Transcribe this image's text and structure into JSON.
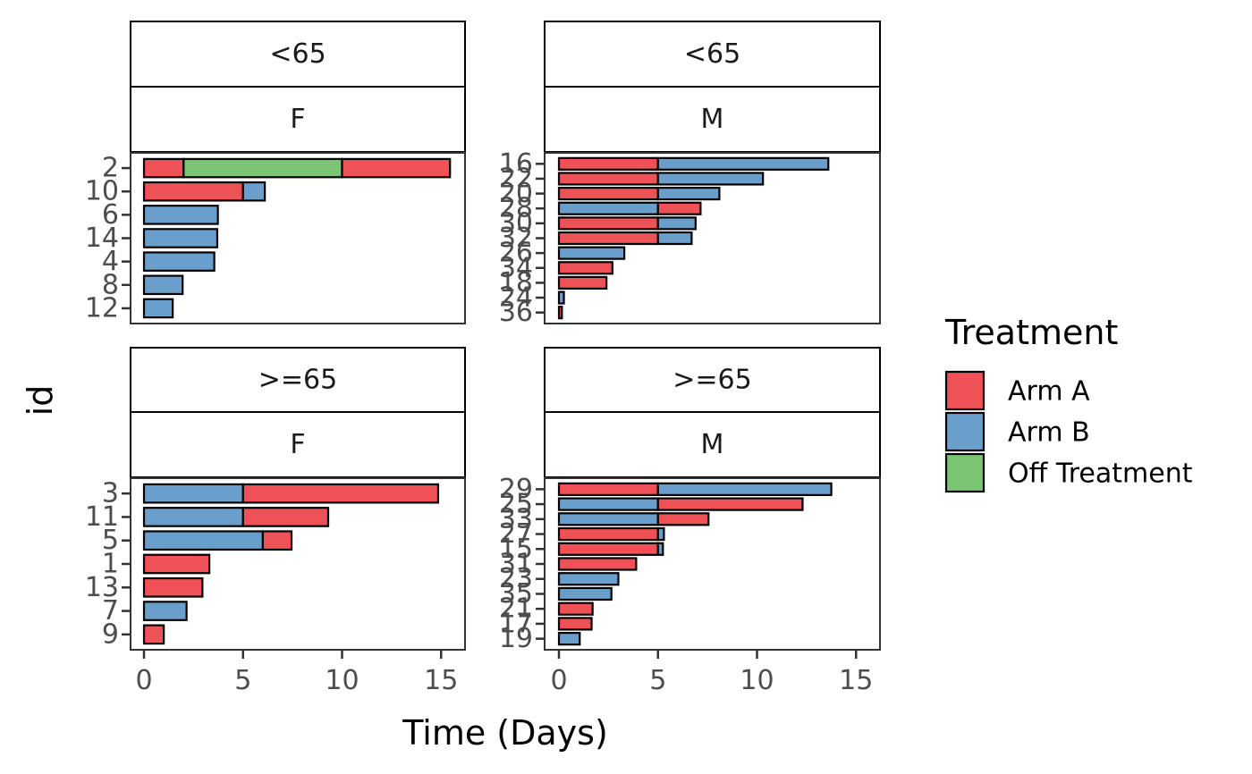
{
  "chart_data": {
    "type": "bar",
    "orientation": "horizontal",
    "stacked": true,
    "xlabel": "Time (Days)",
    "ylabel": "id",
    "xlim": [
      0,
      15.5
    ],
    "xticks": [
      0,
      5,
      10,
      15
    ],
    "grid": false,
    "legend": {
      "title": "Treatment",
      "position": "right",
      "entries": [
        {
          "name": "Arm A",
          "color": "#EE5256"
        },
        {
          "name": "Arm B",
          "color": "#6A9ECB"
        },
        {
          "name": "Off Treatment",
          "color": "#7AC474"
        }
      ]
    },
    "panels": [
      {
        "age": "<65",
        "sex": "F",
        "bars": [
          {
            "id": "2",
            "segments": [
              {
                "arm": "Arm A",
                "start": 0,
                "end": 2.0
              },
              {
                "arm": "Off Treatment",
                "start": 2.0,
                "end": 10.0
              },
              {
                "arm": "Arm A",
                "start": 10.0,
                "end": 15.45
              }
            ]
          },
          {
            "id": "10",
            "segments": [
              {
                "arm": "Arm A",
                "start": 0,
                "end": 5.0
              },
              {
                "arm": "Arm B",
                "start": 5.0,
                "end": 6.1
              }
            ]
          },
          {
            "id": "6",
            "segments": [
              {
                "arm": "Arm B",
                "start": 0,
                "end": 3.73
              }
            ]
          },
          {
            "id": "14",
            "segments": [
              {
                "arm": "Arm B",
                "start": 0,
                "end": 3.7
              }
            ]
          },
          {
            "id": "4",
            "segments": [
              {
                "arm": "Arm B",
                "start": 0,
                "end": 3.55
              }
            ]
          },
          {
            "id": "8",
            "segments": [
              {
                "arm": "Arm B",
                "start": 0,
                "end": 1.95
              }
            ]
          },
          {
            "id": "12",
            "segments": [
              {
                "arm": "Arm B",
                "start": 0,
                "end": 1.45
              }
            ]
          }
        ]
      },
      {
        "age": "<65",
        "sex": "M",
        "bars": [
          {
            "id": "16",
            "segments": [
              {
                "arm": "Arm A",
                "start": 0,
                "end": 5.0
              },
              {
                "arm": "Arm B",
                "start": 5.0,
                "end": 13.6
              }
            ]
          },
          {
            "id": "22",
            "segments": [
              {
                "arm": "Arm A",
                "start": 0,
                "end": 5.0
              },
              {
                "arm": "Arm B",
                "start": 5.0,
                "end": 10.3
              }
            ]
          },
          {
            "id": "20",
            "segments": [
              {
                "arm": "Arm A",
                "start": 0,
                "end": 5.0
              },
              {
                "arm": "Arm B",
                "start": 5.0,
                "end": 8.1
              }
            ]
          },
          {
            "id": "28",
            "segments": [
              {
                "arm": "Arm B",
                "start": 0,
                "end": 5.0
              },
              {
                "arm": "Arm A",
                "start": 5.0,
                "end": 7.15
              }
            ]
          },
          {
            "id": "30",
            "segments": [
              {
                "arm": "Arm A",
                "start": 0,
                "end": 5.0
              },
              {
                "arm": "Arm B",
                "start": 5.0,
                "end": 6.9
              }
            ]
          },
          {
            "id": "32",
            "segments": [
              {
                "arm": "Arm A",
                "start": 0,
                "end": 5.0
              },
              {
                "arm": "Arm B",
                "start": 5.0,
                "end": 6.7
              }
            ]
          },
          {
            "id": "26",
            "segments": [
              {
                "arm": "Arm B",
                "start": 0,
                "end": 3.3
              }
            ]
          },
          {
            "id": "34",
            "segments": [
              {
                "arm": "Arm A",
                "start": 0,
                "end": 2.7
              }
            ]
          },
          {
            "id": "18",
            "segments": [
              {
                "arm": "Arm A",
                "start": 0,
                "end": 2.4
              }
            ]
          },
          {
            "id": "24",
            "segments": [
              {
                "arm": "Arm B",
                "start": 0,
                "end": 0.25
              }
            ]
          },
          {
            "id": "36",
            "segments": [
              {
                "arm": "Arm A",
                "start": 0,
                "end": 0.15
              }
            ]
          }
        ]
      },
      {
        "age": ">=65",
        "sex": "F",
        "bars": [
          {
            "id": "3",
            "segments": [
              {
                "arm": "Arm B",
                "start": 0,
                "end": 5.0
              },
              {
                "arm": "Arm A",
                "start": 5.0,
                "end": 14.85
              }
            ]
          },
          {
            "id": "11",
            "segments": [
              {
                "arm": "Arm B",
                "start": 0,
                "end": 5.0
              },
              {
                "arm": "Arm A",
                "start": 5.0,
                "end": 9.3
              }
            ]
          },
          {
            "id": "5",
            "segments": [
              {
                "arm": "Arm B",
                "start": 0,
                "end": 6.0
              },
              {
                "arm": "Arm A",
                "start": 6.0,
                "end": 7.45
              }
            ]
          },
          {
            "id": "1",
            "segments": [
              {
                "arm": "Arm A",
                "start": 0,
                "end": 3.3
              }
            ]
          },
          {
            "id": "13",
            "segments": [
              {
                "arm": "Arm A",
                "start": 0,
                "end": 2.95
              }
            ]
          },
          {
            "id": "7",
            "segments": [
              {
                "arm": "Arm B",
                "start": 0,
                "end": 2.15
              }
            ]
          },
          {
            "id": "9",
            "segments": [
              {
                "arm": "Arm A",
                "start": 0,
                "end": 1.0
              }
            ]
          }
        ]
      },
      {
        "age": ">=65",
        "sex": "M",
        "bars": [
          {
            "id": "29",
            "segments": [
              {
                "arm": "Arm A",
                "start": 0,
                "end": 5.0
              },
              {
                "arm": "Arm B",
                "start": 5.0,
                "end": 13.75
              }
            ]
          },
          {
            "id": "25",
            "segments": [
              {
                "arm": "Arm B",
                "start": 0,
                "end": 5.0
              },
              {
                "arm": "Arm A",
                "start": 5.0,
                "end": 12.3
              }
            ]
          },
          {
            "id": "33",
            "segments": [
              {
                "arm": "Arm B",
                "start": 0,
                "end": 5.0
              },
              {
                "arm": "Arm A",
                "start": 5.0,
                "end": 7.55
              }
            ]
          },
          {
            "id": "27",
            "segments": [
              {
                "arm": "Arm A",
                "start": 0,
                "end": 5.0
              },
              {
                "arm": "Arm B",
                "start": 5.0,
                "end": 5.3
              }
            ]
          },
          {
            "id": "15",
            "segments": [
              {
                "arm": "Arm A",
                "start": 0,
                "end": 5.0
              },
              {
                "arm": "Arm B",
                "start": 5.0,
                "end": 5.25
              }
            ]
          },
          {
            "id": "31",
            "segments": [
              {
                "arm": "Arm A",
                "start": 0,
                "end": 3.9
              }
            ]
          },
          {
            "id": "23",
            "segments": [
              {
                "arm": "Arm B",
                "start": 0,
                "end": 3.0
              }
            ]
          },
          {
            "id": "35",
            "segments": [
              {
                "arm": "Arm B",
                "start": 0,
                "end": 2.65
              }
            ]
          },
          {
            "id": "21",
            "segments": [
              {
                "arm": "Arm A",
                "start": 0,
                "end": 1.7
              }
            ]
          },
          {
            "id": "17",
            "segments": [
              {
                "arm": "Arm A",
                "start": 0,
                "end": 1.65
              }
            ]
          },
          {
            "id": "19",
            "segments": [
              {
                "arm": "Arm B",
                "start": 0,
                "end": 1.05
              }
            ]
          }
        ]
      }
    ]
  }
}
